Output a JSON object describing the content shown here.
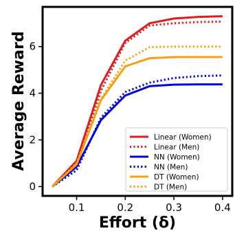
{
  "chart_data": {
    "type": "line",
    "xlabel": "Effort (δ)",
    "ylabel": "Average Reward",
    "xlim": [
      0.03,
      0.42
    ],
    "ylim": [
      -0.4,
      7.7
    ],
    "xticks": [
      0.1,
      0.2,
      0.3,
      0.4
    ],
    "xtick_labels": [
      "0.1",
      "0.2",
      "0.3",
      "0.4"
    ],
    "yticks": [
      0,
      2,
      4,
      6
    ],
    "ytick_labels": [
      "0",
      "2",
      "4",
      "6"
    ],
    "grid": false,
    "legend_position": "lower-right",
    "x": [
      0.05,
      0.1,
      0.15,
      0.2,
      0.25,
      0.3,
      0.35,
      0.4
    ],
    "series": [
      {
        "name": "Linear (Women)",
        "color": "#e31a1c",
        "style": "solid",
        "values": [
          0.0,
          1.1,
          4.35,
          6.25,
          7.0,
          7.2,
          7.27,
          7.3
        ]
      },
      {
        "name": "Linear (Men)",
        "color": "#e31a1c",
        "style": "dotted",
        "values": [
          0.0,
          0.95,
          4.1,
          6.15,
          6.9,
          7.0,
          7.05,
          7.07
        ]
      },
      {
        "name": "NN (Women)",
        "color": "#0000dd",
        "style": "solid",
        "values": [
          0.0,
          0.85,
          2.85,
          3.9,
          4.3,
          4.37,
          4.38,
          4.38
        ]
      },
      {
        "name": "NN (Men)",
        "color": "#0000dd",
        "style": "dotted",
        "values": [
          0.0,
          0.7,
          2.95,
          4.05,
          4.45,
          4.65,
          4.73,
          4.76
        ]
      },
      {
        "name": "DT (Women)",
        "color": "#f5a00f",
        "style": "solid",
        "values": [
          0.0,
          0.95,
          3.7,
          5.15,
          5.5,
          5.55,
          5.55,
          5.55
        ]
      },
      {
        "name": "DT (Men)",
        "color": "#f5a00f",
        "style": "dotted",
        "values": [
          0.0,
          1.0,
          3.75,
          5.4,
          5.97,
          6.0,
          6.0,
          6.0
        ]
      }
    ]
  }
}
